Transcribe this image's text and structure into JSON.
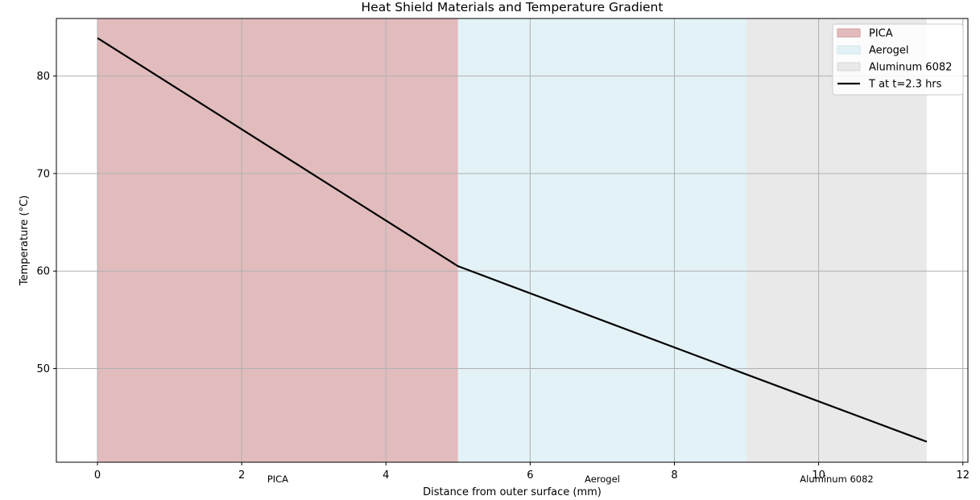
{
  "chart_data": {
    "type": "line",
    "title": "Heat Shield Materials and Temperature Gradient",
    "xlabel": "Distance from outer surface (mm)",
    "ylabel": "Temperature (°C)",
    "xlim": [
      -0.57,
      12.07
    ],
    "ylim": [
      40.4,
      85.9
    ],
    "xticks": [
      0,
      2,
      4,
      6,
      8,
      10,
      12
    ],
    "yticks": [
      50,
      60,
      70,
      80
    ],
    "grid": true,
    "legend_position": "top-right",
    "regions": [
      {
        "name": "PICA",
        "x_start": 0,
        "x_end": 5,
        "color": "#e2bcbd",
        "label_x": 2.5
      },
      {
        "name": "Aerogel",
        "x_start": 5,
        "x_end": 9,
        "color": "#e3f2f6",
        "label_x": 7.0
      },
      {
        "name": "Aluminum 6082",
        "x_start": 9,
        "x_end": 11.5,
        "color": "#e9e9e9",
        "label_x": 10.25
      }
    ],
    "series": [
      {
        "name": "T at t=2.3 hrs",
        "color": "#000000",
        "x": [
          0,
          5,
          9,
          11.5
        ],
        "y": [
          83.9,
          60.5,
          49.4,
          42.5
        ]
      }
    ]
  }
}
